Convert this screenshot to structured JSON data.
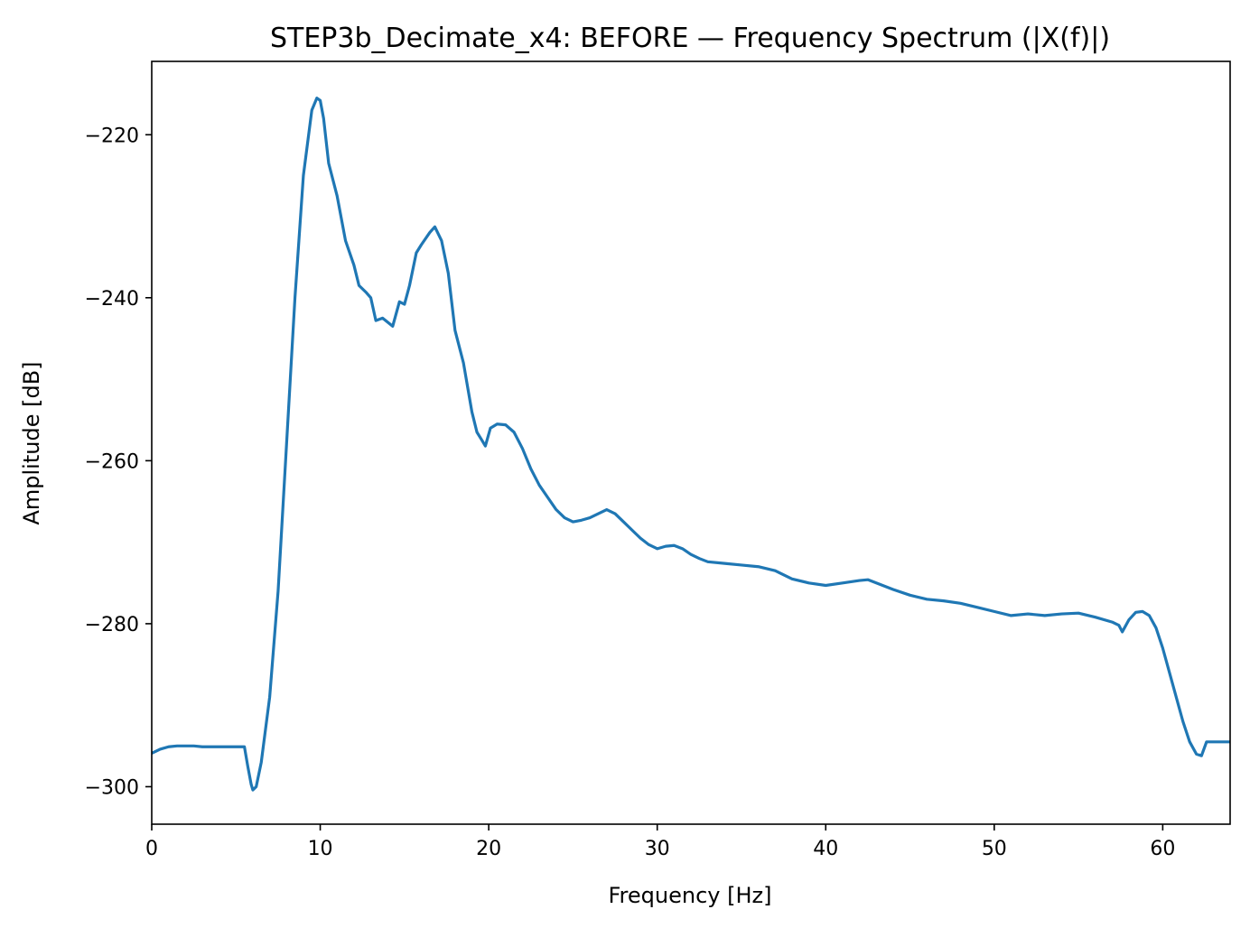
{
  "chart_data": {
    "type": "line",
    "title": "STEP3b_Decimate_x4: BEFORE — Frequency Spectrum (|X(f)|)",
    "xlabel": "Frequency [Hz]",
    "ylabel": "Amplitude [dB]",
    "xlim": [
      0,
      64
    ],
    "ylim": [
      -304.6,
      -211.0
    ],
    "xticks": [
      0,
      10,
      20,
      30,
      40,
      50,
      60
    ],
    "yticks": [
      -220,
      -240,
      -260,
      -280,
      -300
    ],
    "ytick_labels": [
      "−220",
      "−240",
      "−260",
      "−280",
      "−300"
    ],
    "grid": false,
    "legend": "none",
    "series": [
      {
        "color": "#1f77b4",
        "x": [
          0,
          0.5,
          1,
          1.5,
          2,
          2.5,
          3,
          4,
          5,
          5.5,
          5.7,
          5.9,
          6.0,
          6.2,
          6.5,
          7.0,
          7.5,
          8.0,
          8.5,
          9.0,
          9.5,
          9.8,
          10.0,
          10.2,
          10.5,
          11.0,
          11.5,
          12.0,
          12.3,
          12.7,
          13.0,
          13.3,
          13.7,
          14.0,
          14.3,
          14.7,
          15.0,
          15.3,
          15.7,
          16.0,
          16.5,
          16.8,
          17.2,
          17.6,
          18.0,
          18.5,
          19.0,
          19.3,
          19.6,
          19.8,
          20.1,
          20.5,
          21.0,
          21.5,
          22.0,
          22.5,
          23.0,
          23.5,
          24.0,
          24.5,
          25.0,
          25.5,
          26.0,
          26.5,
          27.0,
          27.5,
          28.0,
          28.5,
          29.0,
          29.5,
          30.0,
          30.5,
          31.0,
          31.5,
          32.0,
          32.5,
          33.0,
          34.0,
          35.0,
          36.0,
          37.0,
          38.0,
          39.0,
          40.0,
          41.0,
          42.0,
          42.5,
          43.0,
          44.0,
          45.0,
          46.0,
          47.0,
          48.0,
          49.0,
          50.0,
          51.0,
          52.0,
          53.0,
          54.0,
          55.0,
          56.0,
          57.0,
          57.4,
          57.6,
          58.0,
          58.4,
          58.8,
          59.2,
          59.6,
          60.0,
          60.4,
          60.8,
          61.2,
          61.6,
          62.0,
          62.3,
          62.6,
          63.0,
          64.0
        ],
        "y": [
          -295.9,
          -295.4,
          -295.1,
          -295.0,
          -295.0,
          -295.0,
          -295.1,
          -295.1,
          -295.1,
          -295.1,
          -297.5,
          -299.7,
          -300.4,
          -300.0,
          -297.0,
          -289.0,
          -276.0,
          -258.0,
          -240.0,
          -225.0,
          -217.0,
          -215.5,
          -215.8,
          -218.0,
          -223.5,
          -227.5,
          -233.0,
          -236.0,
          -238.5,
          -239.3,
          -240.0,
          -242.8,
          -242.5,
          -243.0,
          -243.5,
          -240.5,
          -240.8,
          -238.5,
          -234.5,
          -233.5,
          -232.0,
          -231.3,
          -233.0,
          -237.0,
          -244.0,
          -248.0,
          -254.0,
          -256.5,
          -257.5,
          -258.2,
          -256.0,
          -255.5,
          -255.6,
          -256.5,
          -258.5,
          -261.0,
          -263.0,
          -264.5,
          -266.0,
          -267.0,
          -267.5,
          -267.3,
          -267.0,
          -266.5,
          -266.0,
          -266.5,
          -267.5,
          -268.5,
          -269.5,
          -270.3,
          -270.8,
          -270.5,
          -270.4,
          -270.8,
          -271.5,
          -272.0,
          -272.4,
          -272.6,
          -272.8,
          -273.0,
          -273.5,
          -274.5,
          -275.0,
          -275.3,
          -275.0,
          -274.7,
          -274.6,
          -275.0,
          -275.8,
          -276.5,
          -277.0,
          -277.2,
          -277.5,
          -278.0,
          -278.5,
          -279.0,
          -278.8,
          -279.0,
          -278.8,
          -278.7,
          -279.2,
          -279.8,
          -280.2,
          -281.0,
          -279.5,
          -278.6,
          -278.5,
          -279.0,
          -280.5,
          -283.0,
          -286.0,
          -289.0,
          -292.0,
          -294.5,
          -296.0,
          -296.2,
          -294.5,
          -294.5,
          -294.5
        ]
      }
    ]
  }
}
